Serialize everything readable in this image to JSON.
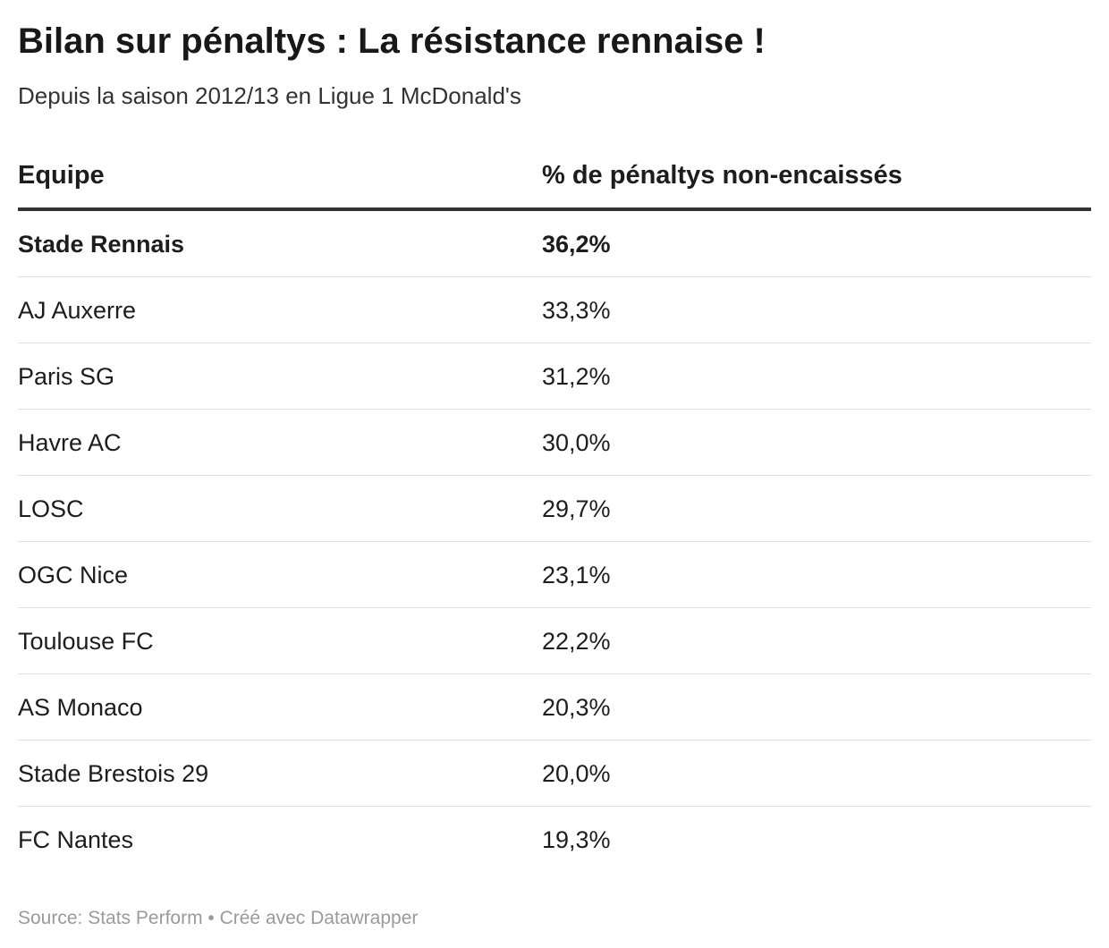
{
  "header": {
    "title": "Bilan sur pénaltys : La résistance rennaise !",
    "subtitle": "Depuis la saison 2012/13 en Ligue 1 McDonald's"
  },
  "chart_data": {
    "type": "table",
    "title": "Bilan sur pénaltys : La résistance rennaise !",
    "subtitle": "Depuis la saison 2012/13 en Ligue 1 McDonald's",
    "columns": [
      "Equipe",
      "% de pénaltys non-encaissés"
    ],
    "rows": [
      {
        "team": "Stade Rennais",
        "value": "36,2%",
        "highlight": true
      },
      {
        "team": "AJ Auxerre",
        "value": "33,3%",
        "highlight": false
      },
      {
        "team": "Paris SG",
        "value": "31,2%",
        "highlight": false
      },
      {
        "team": "Havre AC",
        "value": "30,0%",
        "highlight": false
      },
      {
        "team": "LOSC",
        "value": "29,7%",
        "highlight": false
      },
      {
        "team": "OGC Nice",
        "value": "23,1%",
        "highlight": false
      },
      {
        "team": "Toulouse FC",
        "value": "22,2%",
        "highlight": false
      },
      {
        "team": "AS Monaco",
        "value": "20,3%",
        "highlight": false
      },
      {
        "team": "Stade Brestois 29",
        "value": "20,0%",
        "highlight": false
      },
      {
        "team": "FC Nantes",
        "value": "19,3%",
        "highlight": false
      }
    ]
  },
  "footer": {
    "source": "Source: Stats Perform • Créé avec Datawrapper"
  }
}
